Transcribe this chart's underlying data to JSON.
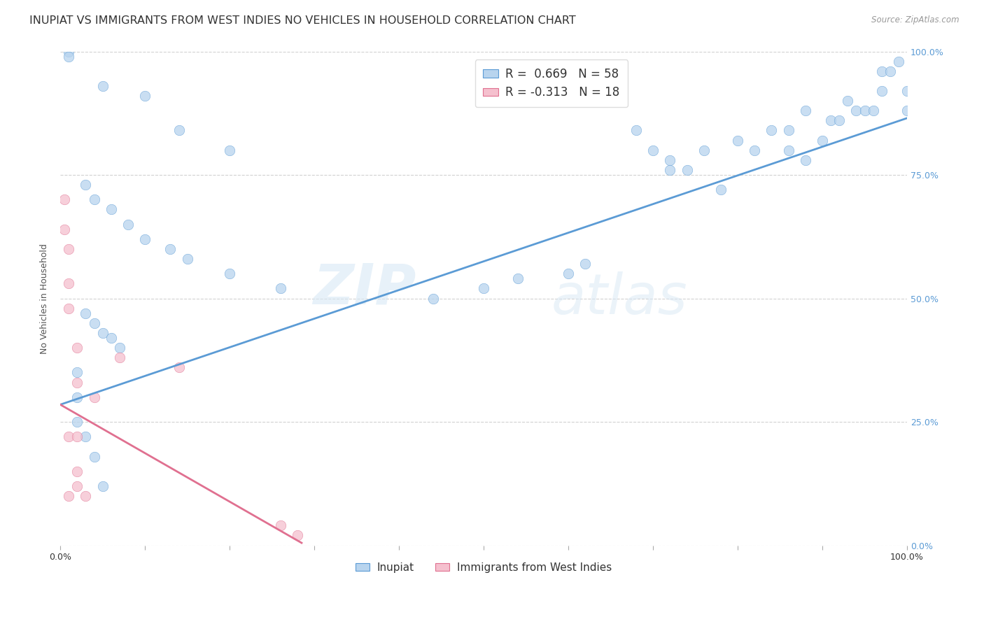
{
  "title": "INUPIAT VS IMMIGRANTS FROM WEST INDIES NO VEHICLES IN HOUSEHOLD CORRELATION CHART",
  "source": "Source: ZipAtlas.com",
  "ylabel": "No Vehicles in Household",
  "ytick_labels": [
    "0.0%",
    "25.0%",
    "50.0%",
    "75.0%",
    "100.0%"
  ],
  "ytick_values": [
    0.0,
    0.25,
    0.5,
    0.75,
    1.0
  ],
  "xtick_values": [
    0.0,
    0.1,
    0.2,
    0.3,
    0.4,
    0.5,
    0.6,
    0.7,
    0.8,
    0.9,
    1.0
  ],
  "xtick_labels": [
    "0.0%",
    "",
    "",
    "",
    "",
    "",
    "",
    "",
    "",
    "",
    "100.0%"
  ],
  "legend_blue_label": "R =  0.669   N = 58",
  "legend_pink_label": "R = -0.313   N = 18",
  "legend_bottom_blue": "Inupiat",
  "legend_bottom_pink": "Immigrants from West Indies",
  "blue_color": "#b8d4ee",
  "pink_color": "#f5c0ce",
  "blue_line_color": "#5b9bd5",
  "pink_line_color": "#e07090",
  "watermark_zip": "ZIP",
  "watermark_atlas": "atlas",
  "blue_scatter_x": [
    0.01,
    0.01,
    0.05,
    0.1,
    0.14,
    0.2,
    0.03,
    0.04,
    0.06,
    0.08,
    0.1,
    0.13,
    0.15,
    0.2,
    0.26,
    0.03,
    0.04,
    0.05,
    0.06,
    0.07,
    0.02,
    0.02,
    0.02,
    0.03,
    0.04,
    0.05,
    0.44,
    0.5,
    0.54,
    0.6,
    0.62,
    0.72,
    0.74,
    0.76,
    0.8,
    0.82,
    0.84,
    0.86,
    0.86,
    0.88,
    0.88,
    0.9,
    0.91,
    0.92,
    0.93,
    0.94,
    0.95,
    0.96,
    0.97,
    0.97,
    0.98,
    0.99,
    1.0,
    1.0,
    0.68,
    0.7,
    0.72,
    0.78
  ],
  "blue_scatter_y": [
    1.0,
    0.99,
    0.93,
    0.91,
    0.84,
    0.8,
    0.73,
    0.7,
    0.68,
    0.65,
    0.62,
    0.6,
    0.58,
    0.55,
    0.52,
    0.47,
    0.45,
    0.43,
    0.42,
    0.4,
    0.35,
    0.3,
    0.25,
    0.22,
    0.18,
    0.12,
    0.5,
    0.52,
    0.54,
    0.55,
    0.57,
    0.78,
    0.76,
    0.8,
    0.82,
    0.8,
    0.84,
    0.8,
    0.84,
    0.78,
    0.88,
    0.82,
    0.86,
    0.86,
    0.9,
    0.88,
    0.88,
    0.88,
    0.92,
    0.96,
    0.96,
    0.98,
    0.88,
    0.92,
    0.84,
    0.8,
    0.76,
    0.72
  ],
  "pink_scatter_x": [
    0.005,
    0.005,
    0.01,
    0.01,
    0.01,
    0.01,
    0.01,
    0.02,
    0.02,
    0.02,
    0.02,
    0.02,
    0.03,
    0.04,
    0.07,
    0.14,
    0.26,
    0.28
  ],
  "pink_scatter_y": [
    0.7,
    0.64,
    0.6,
    0.53,
    0.48,
    0.22,
    0.1,
    0.4,
    0.33,
    0.22,
    0.15,
    0.12,
    0.1,
    0.3,
    0.38,
    0.36,
    0.04,
    0.02
  ],
  "blue_line_x0": 0.0,
  "blue_line_y0": 0.285,
  "blue_line_x1": 1.0,
  "blue_line_y1": 0.865,
  "pink_line_x0": 0.0,
  "pink_line_y0": 0.285,
  "pink_line_x1": 0.285,
  "pink_line_y1": 0.005,
  "background_color": "#ffffff",
  "grid_color": "#cccccc",
  "title_color": "#333333",
  "title_fontsize": 11.5,
  "axis_label_fontsize": 9,
  "tick_fontsize": 9,
  "scatter_size": 110
}
